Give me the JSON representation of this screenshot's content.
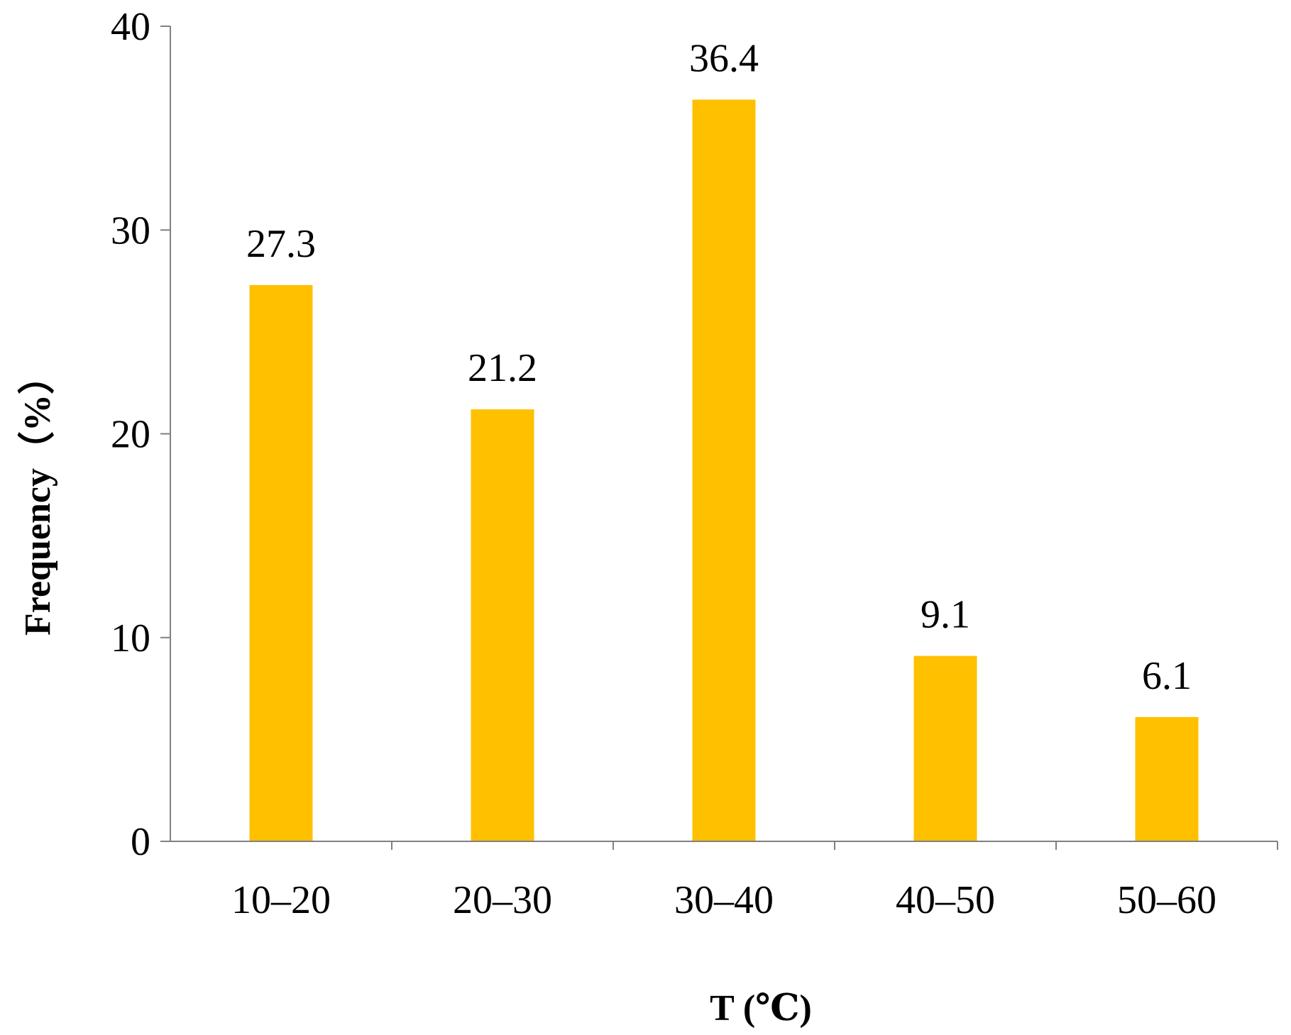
{
  "chart_data": {
    "type": "bar",
    "categories": [
      "10–20",
      "20–30",
      "30–40",
      "40–50",
      "50–60"
    ],
    "values": [
      27.3,
      21.2,
      36.4,
      9.1,
      6.1
    ],
    "data_labels": [
      "27.3",
      "21.2",
      "36.4",
      "9.1",
      "6.1"
    ],
    "title": "",
    "xlabel": "T (℃)",
    "ylabel": "Frequency（%）",
    "ylim": [
      0,
      40
    ],
    "yticks": [
      0,
      10,
      20,
      30,
      40
    ],
    "ytick_labels": [
      "0",
      "10",
      "20",
      "30",
      "40"
    ],
    "grid": false,
    "legend": "none",
    "colors": {
      "bar": "#FFC000",
      "axis": "#808080",
      "text": "#000000"
    }
  }
}
